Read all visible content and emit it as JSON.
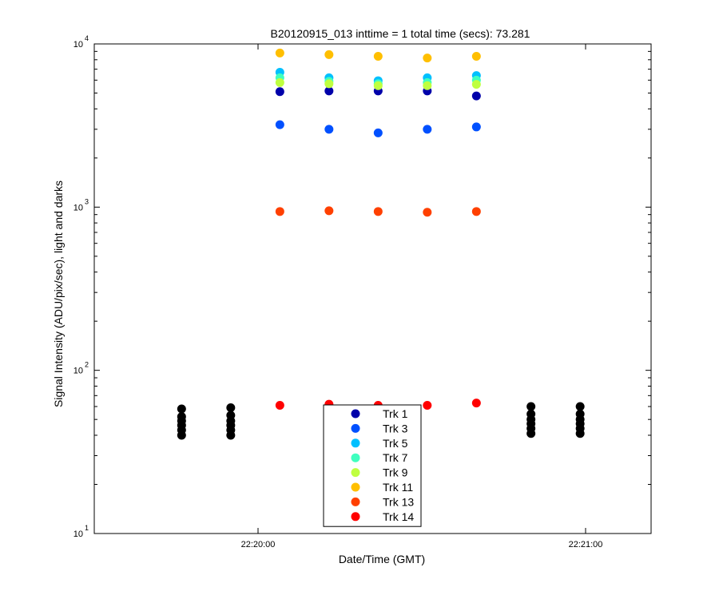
{
  "chart_data": {
    "type": "scatter",
    "title": "B20120915_013 inttime = 1 total time (secs): 73.281",
    "xlabel": "Date/Time (GMT)",
    "ylabel": "Signal Intensity (ADU/pix/sec), light and darks",
    "y_scale": "log",
    "ylim": [
      10,
      10000
    ],
    "xlim": [
      "22:19:30",
      "22:21:12"
    ],
    "x_ticks": [
      "22:20:00",
      "22:21:00"
    ],
    "y_ticks": [
      {
        "base": "10",
        "exp": "1"
      },
      {
        "base": "10",
        "exp": "2"
      },
      {
        "base": "10",
        "exp": "3"
      },
      {
        "base": "10",
        "exp": "4"
      }
    ],
    "legend_position": "bottom-center",
    "series": [
      {
        "name": "Trk 1",
        "color": "#0000aa",
        "x": [
          "22:20:04",
          "22:20:13",
          "22:20:22",
          "22:20:31",
          "22:20:40"
        ],
        "y": [
          5100,
          5150,
          5150,
          5150,
          4800
        ]
      },
      {
        "name": "Trk 3",
        "color": "#0050ff",
        "x": [
          "22:20:04",
          "22:20:13",
          "22:20:22",
          "22:20:31",
          "22:20:40"
        ],
        "y": [
          3200,
          3000,
          2850,
          3000,
          3100
        ]
      },
      {
        "name": "Trk 5",
        "color": "#00c0ff",
        "x": [
          "22:20:04",
          "22:20:13",
          "22:20:22",
          "22:20:31",
          "22:20:40"
        ],
        "y": [
          6700,
          6200,
          5950,
          6200,
          6400
        ]
      },
      {
        "name": "Trk 7",
        "color": "#40ffbf",
        "x": [
          "22:20:04",
          "22:20:13",
          "22:20:22",
          "22:20:31",
          "22:20:40"
        ],
        "y": [
          6200,
          5900,
          5700,
          5800,
          6000
        ]
      },
      {
        "name": "Trk 9",
        "color": "#bfff40",
        "x": [
          "22:20:04",
          "22:20:13",
          "22:20:22",
          "22:20:31",
          "22:20:40"
        ],
        "y": [
          5800,
          5700,
          5550,
          5550,
          5650
        ]
      },
      {
        "name": "Trk 11",
        "color": "#ffbf00",
        "x": [
          "22:20:04",
          "22:20:13",
          "22:20:22",
          "22:20:31",
          "22:20:40"
        ],
        "y": [
          8800,
          8600,
          8400,
          8200,
          8400
        ]
      },
      {
        "name": "Trk 13",
        "color": "#ff4000",
        "x": [
          "22:20:04",
          "22:20:13",
          "22:20:22",
          "22:20:31",
          "22:20:40"
        ],
        "y": [
          940,
          950,
          940,
          930,
          940
        ]
      },
      {
        "name": "Trk 14",
        "color": "#ff0000",
        "x": [
          "22:20:04",
          "22:20:13",
          "22:20:22",
          "22:20:31",
          "22:20:40"
        ],
        "y": [
          61,
          62,
          61,
          61,
          63
        ]
      }
    ],
    "dark_points": {
      "color": "#000000",
      "x": [
        "22:19:46",
        "22:19:46",
        "22:19:46",
        "22:19:46",
        "22:19:46",
        "22:19:46",
        "22:19:55",
        "22:19:55",
        "22:19:55",
        "22:19:55",
        "22:19:55",
        "22:19:55",
        "22:20:50",
        "22:20:50",
        "22:20:50",
        "22:20:50",
        "22:20:50",
        "22:20:50",
        "22:20:59",
        "22:20:59",
        "22:20:59",
        "22:20:59",
        "22:20:59",
        "22:20:59"
      ],
      "y": [
        40,
        43,
        46,
        49,
        52,
        58,
        40,
        43,
        46,
        49,
        53,
        59,
        41,
        44,
        47,
        50,
        54,
        60,
        41,
        44,
        47,
        50,
        54,
        60
      ]
    }
  }
}
